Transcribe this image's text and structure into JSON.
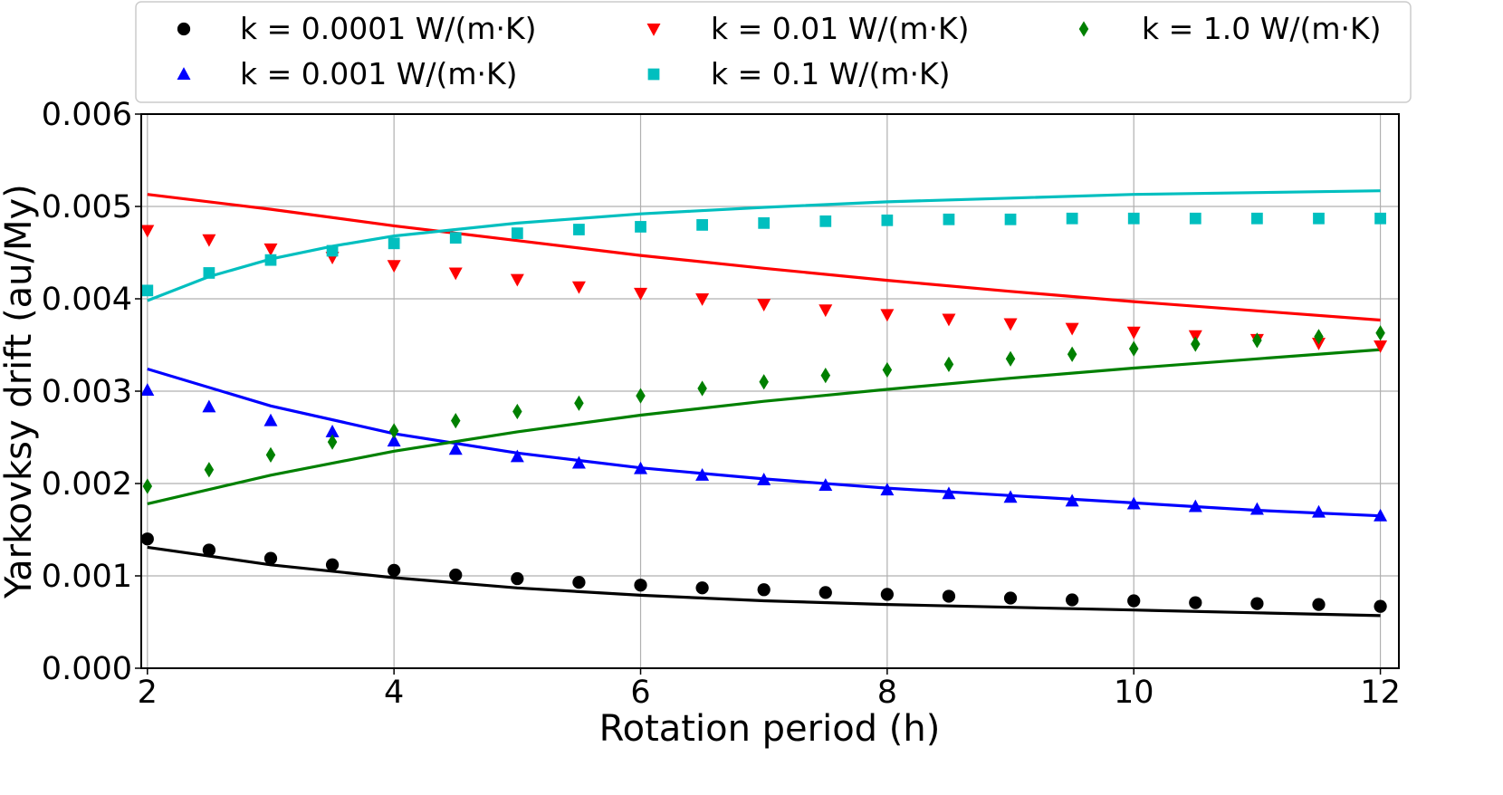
{
  "chart_data": {
    "type": "scatter",
    "title": "",
    "xlabel": "Rotation period (h)",
    "ylabel": "Yarkovksy drift (au/My)",
    "xlim": [
      1.95,
      12.15
    ],
    "ylim": [
      0.0,
      0.006
    ],
    "xticks": [
      2,
      4,
      6,
      8,
      10,
      12
    ],
    "xtick_labels": [
      "2",
      "4",
      "6",
      "8",
      "10",
      "12"
    ],
    "yticks": [
      0.0,
      0.001,
      0.002,
      0.003,
      0.004,
      0.005,
      0.006
    ],
    "ytick_labels": [
      "0.000",
      "0.001",
      "0.002",
      "0.003",
      "0.004",
      "0.005",
      "0.006"
    ],
    "grid": true,
    "legend": {
      "placement": "top",
      "columns": 3
    },
    "x": [
      2,
      2.5,
      3,
      3.5,
      4,
      4.5,
      5,
      5.5,
      6,
      6.5,
      7,
      7.5,
      8,
      8.5,
      9,
      9.5,
      10,
      10.5,
      11,
      11.5,
      12
    ],
    "series": [
      {
        "name": "k = 0.0001 W/(m·K)",
        "color": "#000000",
        "marker": "circle",
        "values": [
          0.0014,
          0.00128,
          0.00119,
          0.00112,
          0.00106,
          0.00101,
          0.00097,
          0.00093,
          0.0009,
          0.00087,
          0.00085,
          0.00082,
          0.0008,
          0.00078,
          0.00076,
          0.00074,
          0.00073,
          0.00071,
          0.0007,
          0.00069,
          0.00067
        ],
        "fit": {
          "x": [
            2,
            3,
            4,
            5,
            6,
            7,
            8,
            9,
            10,
            11,
            12
          ],
          "y": [
            0.00131,
            0.00112,
            0.00098,
            0.00087,
            0.00079,
            0.00073,
            0.00069,
            0.00066,
            0.00063,
            0.0006,
            0.00057
          ]
        }
      },
      {
        "name": "k = 0.001 W/(m·K)",
        "color": "#0000ff",
        "marker": "triangle-up",
        "values": [
          0.00301,
          0.00283,
          0.00268,
          0.00256,
          0.00246,
          0.00237,
          0.00229,
          0.00222,
          0.00216,
          0.00209,
          0.00204,
          0.00198,
          0.00193,
          0.00189,
          0.00185,
          0.00181,
          0.00178,
          0.00175,
          0.00172,
          0.00169,
          0.00165
        ],
        "fit": {
          "x": [
            2,
            3,
            4,
            5,
            6,
            7,
            8,
            9,
            10,
            11,
            12
          ],
          "y": [
            0.00324,
            0.00284,
            0.00254,
            0.00233,
            0.00217,
            0.00205,
            0.00195,
            0.00187,
            0.00179,
            0.00171,
            0.00165
          ]
        }
      },
      {
        "name": "k = 0.01 W/(m·K)",
        "color": "#ff0000",
        "marker": "triangle-down",
        "values": [
          0.00474,
          0.00464,
          0.00454,
          0.00445,
          0.00436,
          0.00428,
          0.00421,
          0.00413,
          0.00406,
          0.004,
          0.00394,
          0.00388,
          0.00383,
          0.00378,
          0.00373,
          0.00368,
          0.00364,
          0.0036,
          0.00356,
          0.00352,
          0.00349
        ],
        "fit": {
          "x": [
            2,
            3,
            4,
            5,
            6,
            7,
            8,
            9,
            10,
            11,
            12
          ],
          "y": [
            0.00513,
            0.00497,
            0.00479,
            0.00463,
            0.00447,
            0.00433,
            0.0042,
            0.00408,
            0.00397,
            0.00387,
            0.00377
          ]
        }
      },
      {
        "name": "k = 0.1 W/(m·K)",
        "color": "#00bfbf",
        "marker": "square",
        "values": [
          0.00409,
          0.00428,
          0.00442,
          0.00452,
          0.0046,
          0.00466,
          0.00471,
          0.00475,
          0.00478,
          0.0048,
          0.00482,
          0.00484,
          0.00485,
          0.00486,
          0.00486,
          0.00487,
          0.00487,
          0.00487,
          0.00487,
          0.00487,
          0.00487
        ],
        "fit": {
          "x": [
            2,
            2.5,
            3,
            3.5,
            4,
            5,
            6,
            7,
            8,
            9,
            10,
            11,
            12
          ],
          "y": [
            0.00398,
            0.00424,
            0.00443,
            0.00457,
            0.00468,
            0.00482,
            0.00492,
            0.00499,
            0.00505,
            0.00509,
            0.00513,
            0.00515,
            0.00517
          ]
        }
      },
      {
        "name": "k = 1.0 W/(m·K)",
        "color": "#008000",
        "marker": "diamond",
        "values": [
          0.00197,
          0.00215,
          0.00231,
          0.00245,
          0.00257,
          0.00268,
          0.00278,
          0.00287,
          0.00295,
          0.00303,
          0.0031,
          0.00317,
          0.00323,
          0.00329,
          0.00335,
          0.0034,
          0.00346,
          0.00351,
          0.00355,
          0.00359,
          0.00363
        ],
        "fit": {
          "x": [
            2,
            3,
            4,
            5,
            6,
            7,
            8,
            9,
            10,
            11,
            12
          ],
          "y": [
            0.00178,
            0.00209,
            0.00235,
            0.00256,
            0.00274,
            0.00289,
            0.00302,
            0.00314,
            0.00325,
            0.00335,
            0.00345
          ]
        }
      }
    ]
  }
}
